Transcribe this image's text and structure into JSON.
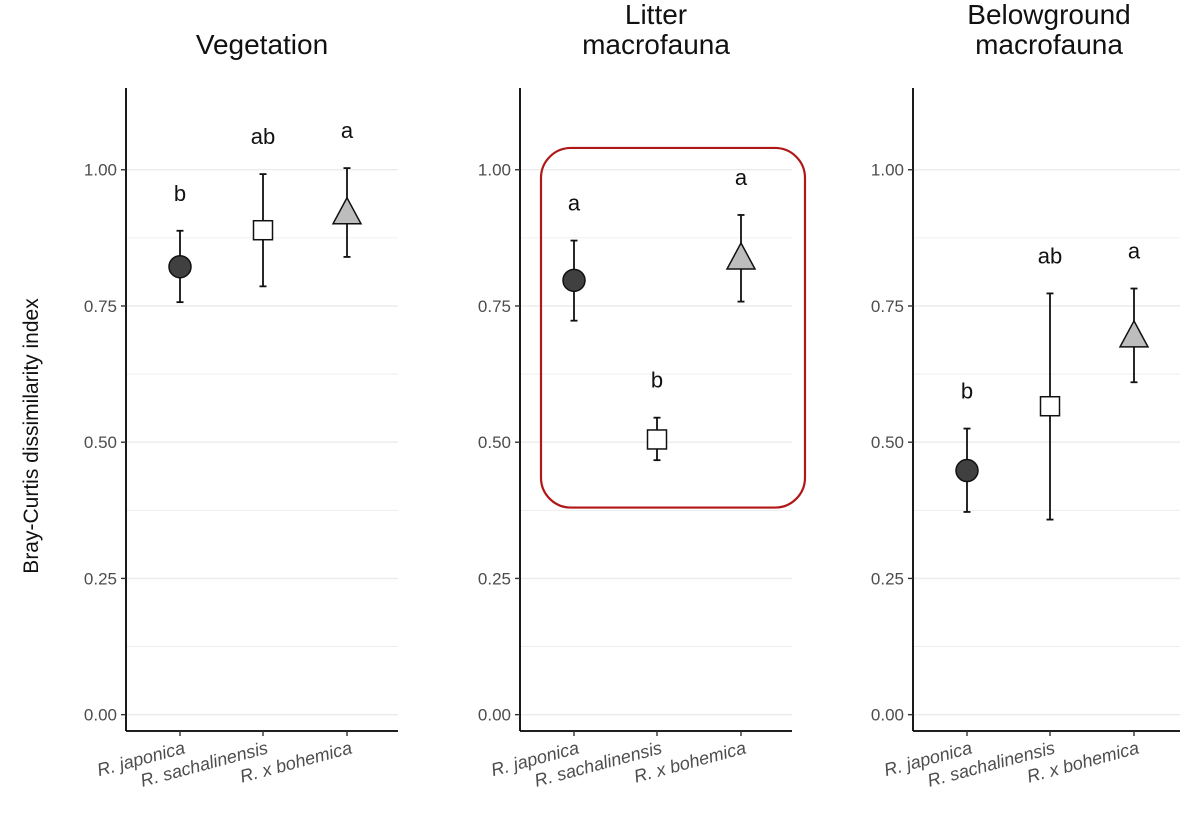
{
  "ylabel": "Bray-Curtis dissimilarity index",
  "colors": {
    "japonica_fill": "#404040",
    "sachalinensis_fill": "#ffffff",
    "bohemica_fill": "#bdbdbd",
    "highlight": "#b01818",
    "grid": "#ebebeb",
    "axis": "#000000"
  },
  "chart_data": [
    {
      "type": "scatter",
      "title_lines": [
        "Vegetation"
      ],
      "categories": [
        "R. japonica",
        "R. sachalinensis",
        "R. x bohemica"
      ],
      "markers": [
        "circle",
        "square",
        "triangle"
      ],
      "ylim": [
        -0.03,
        1.15
      ],
      "yticks": [
        "0.00",
        "0.25",
        "0.50",
        "0.75",
        "1.00"
      ],
      "grid": true,
      "highlight": false,
      "points": [
        {
          "mean": 0.822,
          "lower": 0.757,
          "upper": 0.888,
          "letter": "b"
        },
        {
          "mean": 0.889,
          "lower": 0.786,
          "upper": 0.992,
          "letter": "ab"
        },
        {
          "mean": 0.921,
          "lower": 0.84,
          "upper": 1.003,
          "letter": "a"
        }
      ]
    },
    {
      "type": "scatter",
      "title_lines": [
        "Litter",
        "macrofauna"
      ],
      "categories": [
        "R. japonica",
        "R. sachalinensis",
        "R. x bohemica"
      ],
      "markers": [
        "circle",
        "square",
        "triangle"
      ],
      "ylim": [
        -0.03,
        1.15
      ],
      "yticks": [
        "0.00",
        "0.25",
        "0.50",
        "0.75",
        "1.00"
      ],
      "grid": true,
      "highlight": true,
      "points": [
        {
          "mean": 0.797,
          "lower": 0.723,
          "upper": 0.87,
          "letter": "a"
        },
        {
          "mean": 0.505,
          "lower": 0.467,
          "upper": 0.545,
          "letter": "b"
        },
        {
          "mean": 0.838,
          "lower": 0.758,
          "upper": 0.917,
          "letter": "a"
        }
      ]
    },
    {
      "type": "scatter",
      "title_lines": [
        "Belowground",
        "macrofauna"
      ],
      "categories": [
        "R. japonica",
        "R. sachalinensis",
        "R. x bohemica"
      ],
      "markers": [
        "circle",
        "square",
        "triangle"
      ],
      "ylim": [
        -0.03,
        1.15
      ],
      "yticks": [
        "0.00",
        "0.25",
        "0.50",
        "0.75",
        "1.00"
      ],
      "grid": true,
      "highlight": false,
      "points": [
        {
          "mean": 0.448,
          "lower": 0.372,
          "upper": 0.525,
          "letter": "b"
        },
        {
          "mean": 0.566,
          "lower": 0.358,
          "upper": 0.773,
          "letter": "ab"
        },
        {
          "mean": 0.695,
          "lower": 0.61,
          "upper": 0.782,
          "letter": "a"
        }
      ]
    }
  ]
}
